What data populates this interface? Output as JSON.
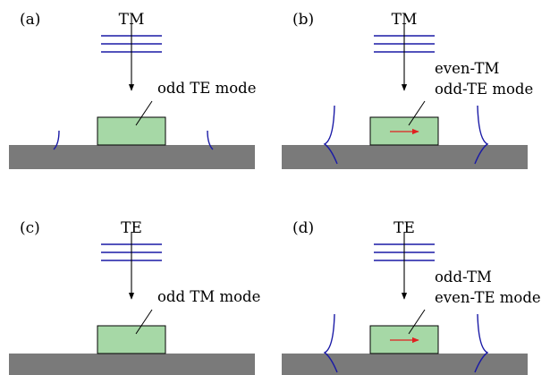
{
  "colors": {
    "substrate": "#7a7a7a",
    "waveguide_fill": "#a6d8a6",
    "waveguide_stroke": "#000000",
    "wave": "#1a1aa6",
    "field_arrow": "#e02020",
    "pointer": "#000000"
  },
  "panels": [
    {
      "id": "a",
      "tag": "(a)",
      "incident": "TM",
      "mode_lines": [
        "odd TE mode"
      ],
      "evanescent": "small",
      "field_arrow": false
    },
    {
      "id": "b",
      "tag": "(b)",
      "incident": "TM",
      "mode_lines": [
        "even-TM",
        "odd-TE mode"
      ],
      "evanescent": "large",
      "field_arrow": true
    },
    {
      "id": "c",
      "tag": "(c)",
      "incident": "TE",
      "mode_lines": [
        "odd TM mode"
      ],
      "evanescent": "none",
      "field_arrow": false
    },
    {
      "id": "d",
      "tag": "(d)",
      "incident": "TE",
      "mode_lines": [
        "odd-TM",
        "even-TE mode"
      ],
      "evanescent": "large",
      "field_arrow": true
    }
  ]
}
